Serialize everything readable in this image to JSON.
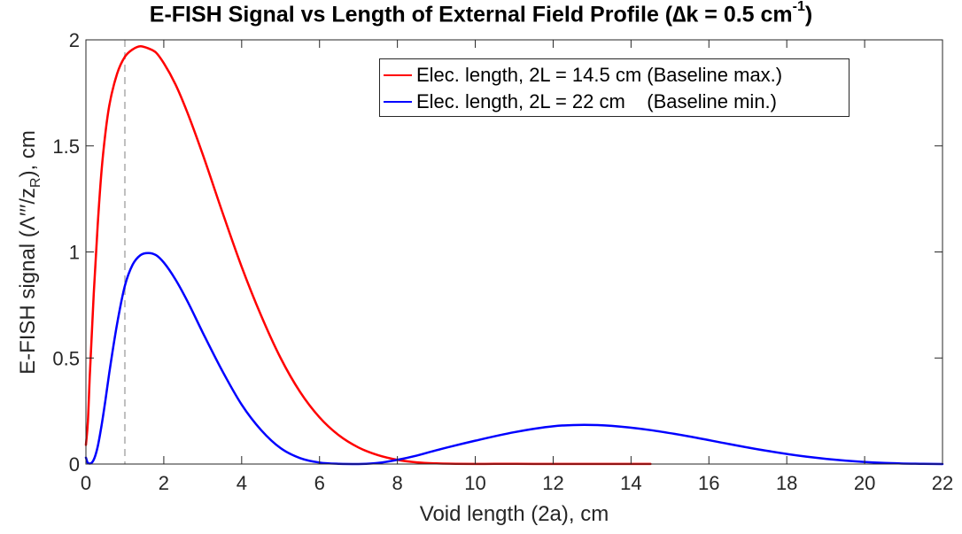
{
  "title_main": "E-FISH Signal vs Length of External Field Profile (∆k = 0.5 cm",
  "title_sup": "-1",
  "title_end": ")",
  "xlabel": "Void length (2a), cm",
  "ylabel_main": "E-FISH signal (Λ′′′/z",
  "ylabel_sub": "R",
  "ylabel_end": "), cm",
  "chart_data": {
    "type": "line",
    "title": "E-FISH Signal vs Length of External Field Profile (∆k = 0.5 cm-1)",
    "xlabel": "Void length (2a), cm",
    "ylabel": "E-FISH signal (Λ′′′/zR), cm",
    "xlim": [
      0,
      22
    ],
    "ylim": [
      0,
      2
    ],
    "x_ticks": [
      0,
      2,
      4,
      6,
      8,
      10,
      12,
      14,
      16,
      18,
      20,
      22
    ],
    "y_ticks": [
      0,
      0.5,
      1,
      1.5,
      2
    ],
    "x_tick_labels": [
      "0",
      "2",
      "4",
      "6",
      "8",
      "10",
      "12",
      "14",
      "16",
      "18",
      "20",
      "22"
    ],
    "y_tick_labels": [
      "0",
      "0.5",
      "1",
      "1.5",
      "2"
    ],
    "grid": false,
    "legend_position": "top-right",
    "vline": {
      "x": 1,
      "style": "dashed",
      "color": "#bfbfbf"
    },
    "series": [
      {
        "name": "Elec. length, 2L = 14.5 cm (Baseline max.)",
        "color": "#ff0000",
        "x": [
          0,
          0.05,
          0.1,
          0.2,
          0.3,
          0.4,
          0.5,
          0.6,
          0.8,
          1.0,
          1.2,
          1.4,
          1.6,
          1.8,
          2.0,
          2.3,
          2.6,
          3.0,
          3.5,
          4.0,
          4.5,
          5.0,
          5.5,
          6.0,
          6.5,
          7.0,
          7.5,
          8.0,
          8.5,
          9.0,
          9.5,
          10.0,
          10.5,
          11.0,
          12.0,
          13.0,
          14.0,
          14.5
        ],
        "y": [
          0.09,
          0.2,
          0.42,
          0.8,
          1.12,
          1.38,
          1.56,
          1.69,
          1.84,
          1.92,
          1.955,
          1.97,
          1.96,
          1.94,
          1.89,
          1.79,
          1.66,
          1.46,
          1.19,
          0.93,
          0.7,
          0.5,
          0.34,
          0.22,
          0.135,
          0.078,
          0.042,
          0.02,
          0.008,
          0.003,
          0.001,
          0.0005,
          0.001,
          0.001,
          0.0005,
          0.0005,
          0.0005,
          0.0005
        ]
      },
      {
        "name": "Elec. length, 2L = 22 cm    (Baseline min.)",
        "color": "#0000ff",
        "x": [
          0,
          0.05,
          0.1,
          0.2,
          0.3,
          0.4,
          0.5,
          0.6,
          0.8,
          1.0,
          1.2,
          1.4,
          1.6,
          1.8,
          2.0,
          2.3,
          2.6,
          3.0,
          3.5,
          4.0,
          4.5,
          5.0,
          5.5,
          6.0,
          6.5,
          7.0,
          7.2,
          7.5,
          8.0,
          8.5,
          9.0,
          10.0,
          11.0,
          12.0,
          12.8,
          13.5,
          14.5,
          15.5,
          16.5,
          17.5,
          18.5,
          19.5,
          20.5,
          21.5,
          22.0
        ],
        "y": [
          0.03,
          0.005,
          0.002,
          0.02,
          0.08,
          0.18,
          0.3,
          0.43,
          0.66,
          0.84,
          0.94,
          0.985,
          0.995,
          0.985,
          0.95,
          0.87,
          0.77,
          0.62,
          0.44,
          0.28,
          0.16,
          0.075,
          0.028,
          0.007,
          0.001,
          0.0,
          0.001,
          0.005,
          0.02,
          0.04,
          0.065,
          0.11,
          0.15,
          0.178,
          0.185,
          0.18,
          0.16,
          0.13,
          0.095,
          0.062,
          0.035,
          0.016,
          0.005,
          0.001,
          0.0
        ]
      }
    ]
  }
}
